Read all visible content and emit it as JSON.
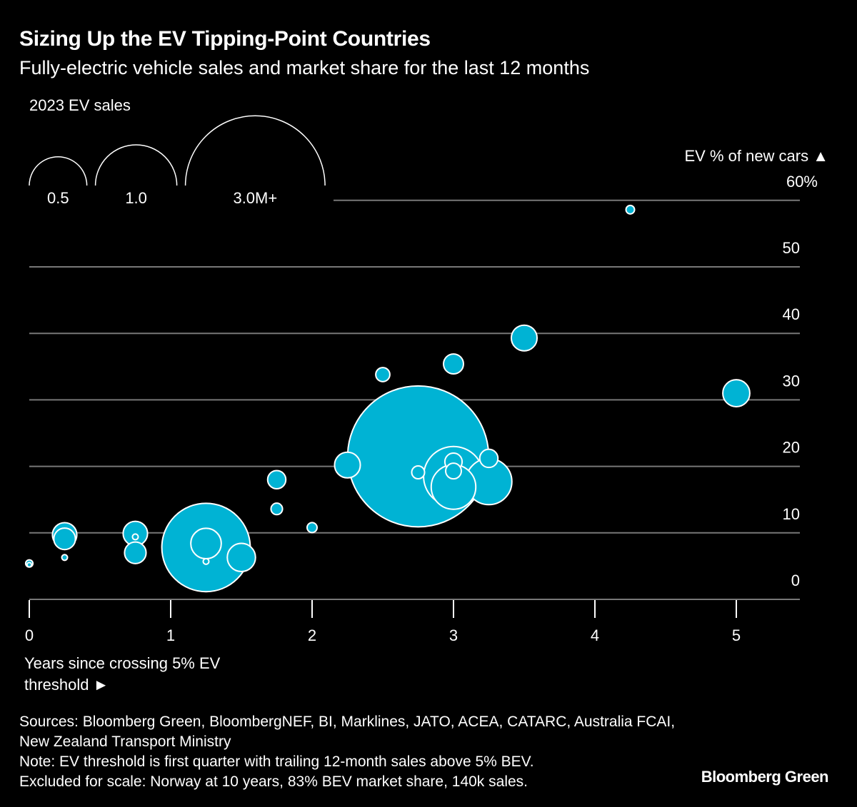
{
  "chart_data": {
    "type": "scatter",
    "title": "Sizing Up the EV Tipping-Point Countries",
    "subtitle": "Fully-electric vehicle sales and market share for the last 12 months",
    "xlabel": "Years since crossing 5% EV threshold ►",
    "ylabel": "EV % of new cars ▲",
    "xlim": [
      0,
      5.3
    ],
    "ylim": [
      0,
      60
    ],
    "x_ticks": [
      "0",
      "1",
      "2",
      "3",
      "4",
      "5"
    ],
    "y_ticks": [
      "0",
      "10",
      "20",
      "30",
      "40",
      "50",
      "60%"
    ],
    "grid": true,
    "size_legend": {
      "title": "2023 EV sales",
      "entries": [
        {
          "label": "0.5",
          "value": 0.5
        },
        {
          "label": "1.0",
          "value": 1.0
        },
        {
          "label": "3.0M+",
          "value": 3.0
        }
      ]
    },
    "bubble_color": "#00b3d4",
    "points": [
      {
        "x": 0,
        "y": 5.4,
        "sales_m": 0.008
      },
      {
        "x": 0,
        "y": 5.2,
        "sales_m": 0.003
      },
      {
        "x": 0.25,
        "y": 9.7,
        "sales_m": 0.09
      },
      {
        "x": 0.25,
        "y": 9.1,
        "sales_m": 0.07
      },
      {
        "x": 0.25,
        "y": 6.3,
        "sales_m": 0.005
      },
      {
        "x": 0.75,
        "y": 9.9,
        "sales_m": 0.09
      },
      {
        "x": 0.75,
        "y": 9.4,
        "sales_m": 0.005
      },
      {
        "x": 0.75,
        "y": 7.0,
        "sales_m": 0.07
      },
      {
        "x": 1.25,
        "y": 7.8,
        "sales_m": 1.18
      },
      {
        "x": 1.25,
        "y": 8.4,
        "sales_m": 0.14
      },
      {
        "x": 1.25,
        "y": 5.7,
        "sales_m": 0.005
      },
      {
        "x": 1.5,
        "y": 6.3,
        "sales_m": 0.12
      },
      {
        "x": 1.75,
        "y": 18.0,
        "sales_m": 0.05
      },
      {
        "x": 1.75,
        "y": 13.6,
        "sales_m": 0.02
      },
      {
        "x": 2,
        "y": 10.8,
        "sales_m": 0.015
      },
      {
        "x": 2.25,
        "y": 20.2,
        "sales_m": 0.1
      },
      {
        "x": 2.5,
        "y": 33.8,
        "sales_m": 0.03
      },
      {
        "x": 2.75,
        "y": 21.5,
        "sales_m": 3.0
      },
      {
        "x": 2.75,
        "y": 19.1,
        "sales_m": 0.025
      },
      {
        "x": 3,
        "y": 35.4,
        "sales_m": 0.06
      },
      {
        "x": 3,
        "y": 18.5,
        "sales_m": 0.54
      },
      {
        "x": 3,
        "y": 16.9,
        "sales_m": 0.3
      },
      {
        "x": 3,
        "y": 20.7,
        "sales_m": 0.045
      },
      {
        "x": 3,
        "y": 19.3,
        "sales_m": 0.037
      },
      {
        "x": 3.25,
        "y": 17.7,
        "sales_m": 0.32
      },
      {
        "x": 3.25,
        "y": 21.2,
        "sales_m": 0.05
      },
      {
        "x": 3.5,
        "y": 39.3,
        "sales_m": 0.1
      },
      {
        "x": 4.25,
        "y": 58.6,
        "sales_m": 0.011
      },
      {
        "x": 5,
        "y": 31.0,
        "sales_m": 0.11
      }
    ]
  },
  "footer": {
    "sources": "Sources: Bloomberg Green, BloombergNEF, BI, Marklines, JATO, ACEA, CATARC, Australia FCAI, New Zealand Transport Ministry",
    "note": "Note: EV threshold is first quarter with trailing 12-month sales above 5% BEV.",
    "excluded": "Excluded for scale: Norway at 10 years, 83% BEV market share, 140k sales.",
    "brand": "Bloomberg Green"
  }
}
